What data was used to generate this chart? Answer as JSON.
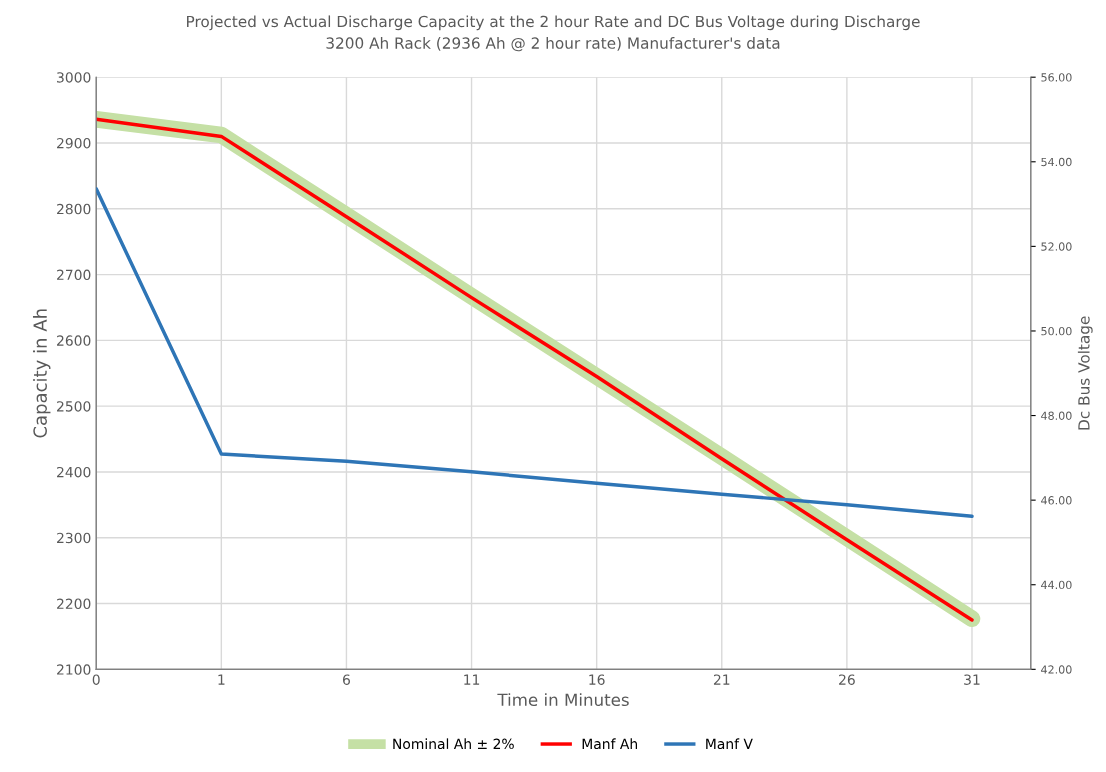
{
  "chart_data": {
    "type": "line",
    "title": "Projected vs Actual Discharge Capacity at the 2 hour Rate and DC Bus Voltage during Discharge",
    "subtitle": "3200 Ah Rack (2936 Ah @ 2 hour rate) Manufacturer's data",
    "xlabel": "Time in Minutes",
    "ylabel": "Capacity in Ah",
    "y2label": "Dc Bus Voltage",
    "categories": [
      "0",
      "1",
      "6",
      "11",
      "16",
      "21",
      "26",
      "31"
    ],
    "series": [
      {
        "name": "Nominal Ah ± 2%",
        "color": "#c5e0a5",
        "values": [
          2936,
          2912,
          2790,
          2667,
          2545,
          2423,
          2300,
          2177
        ]
      },
      {
        "name": "Manf Ah",
        "color": "#ff0000",
        "values": [
          2936,
          2910,
          2788,
          2665,
          2545,
          2420,
          2297,
          2175
        ]
      },
      {
        "name": "Manf V",
        "color": "#2e75b6",
        "axis": "y2",
        "values": [
          53.36,
          47.09,
          46.92,
          46.67,
          46.4,
          46.14,
          45.89,
          45.62
        ]
      }
    ],
    "ylim": [
      2100,
      3000
    ],
    "yticks": [
      2100,
      2200,
      2300,
      2400,
      2500,
      2600,
      2700,
      2800,
      2900,
      3000
    ],
    "y2lim": [
      42,
      56
    ],
    "y2ticks": [
      {
        "value": 42,
        "label": "42.00"
      },
      {
        "value": 44,
        "label": "44.00"
      },
      {
        "value": 46,
        "label": "46.00"
      },
      {
        "value": 48,
        "label": "48.00"
      },
      {
        "value": 50,
        "label": "50.00"
      },
      {
        "value": 52,
        "label": "52.00"
      },
      {
        "value": 54,
        "label": "54.00"
      },
      {
        "value": 56,
        "label": "56.00"
      }
    ],
    "grid": true,
    "legend": "bottom",
    "marker": "none",
    "line_style": "solid"
  }
}
